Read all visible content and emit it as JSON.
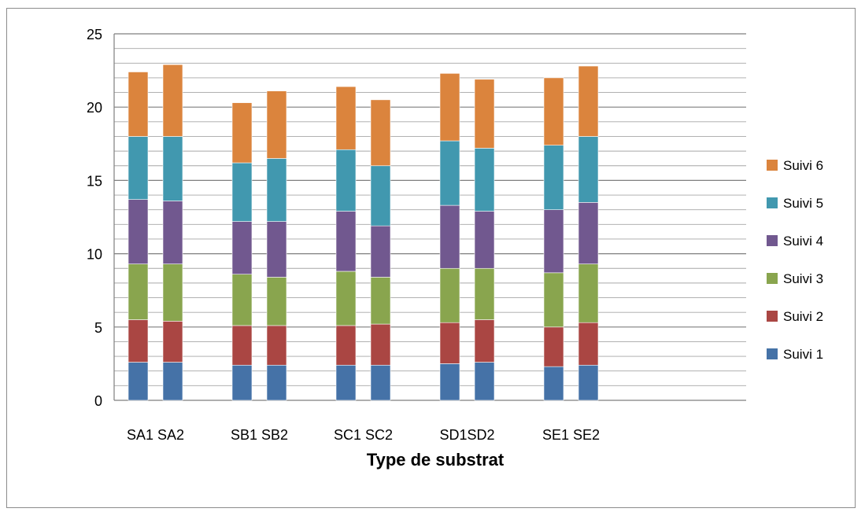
{
  "chart_data": {
    "type": "bar",
    "stacked": true,
    "title": "",
    "xlabel": "Type de substrat",
    "ylabel": "",
    "ylim": [
      0,
      25
    ],
    "y_ticks": [
      "0",
      "5",
      "10",
      "15",
      "20",
      "25"
    ],
    "grid": true,
    "legend_position": "right",
    "groups": [
      {
        "categories": [
          "SA1",
          "SA2"
        ]
      },
      {
        "categories": [
          "SB1",
          "SB2"
        ]
      },
      {
        "categories": [
          "SC1",
          "SC2"
        ]
      },
      {
        "categories": [
          "SD1",
          "SD2"
        ]
      },
      {
        "categories": [
          "SE1",
          "SE2"
        ]
      }
    ],
    "category_labels": [
      "SA1 SA2",
      "SB1 SB2",
      "SC1 SC2",
      "SD1SD2",
      "SE1 SE2"
    ],
    "categories": [
      "SA1",
      "SA2",
      "SB1",
      "SB2",
      "SC1",
      "SC2",
      "SD1",
      "SD2",
      "SE1",
      "SE2"
    ],
    "series": [
      {
        "name": "Suivi 1",
        "color": "#4572A7",
        "values": [
          2.6,
          2.6,
          2.4,
          2.4,
          2.4,
          2.4,
          2.5,
          2.6,
          2.3,
          2.4
        ]
      },
      {
        "name": "Suivi 2",
        "color": "#AA4643",
        "values": [
          2.9,
          2.8,
          2.7,
          2.7,
          2.7,
          2.8,
          2.8,
          2.9,
          2.7,
          2.9
        ]
      },
      {
        "name": "Suivi 3",
        "color": "#89A54E",
        "values": [
          3.8,
          3.9,
          3.5,
          3.3,
          3.7,
          3.2,
          3.7,
          3.5,
          3.7,
          4.0
        ]
      },
      {
        "name": "Suivi 4",
        "color": "#71588F",
        "values": [
          4.4,
          4.3,
          3.6,
          3.8,
          4.1,
          3.5,
          4.3,
          3.9,
          4.3,
          4.2
        ]
      },
      {
        "name": "Suivi 5",
        "color": "#4198AF",
        "values": [
          4.3,
          4.4,
          4.0,
          4.3,
          4.2,
          4.1,
          4.4,
          4.3,
          4.4,
          4.5
        ]
      },
      {
        "name": "Suivi 6",
        "color": "#DB843D",
        "values": [
          4.4,
          4.9,
          4.1,
          4.6,
          4.3,
          4.5,
          4.6,
          4.7,
          4.6,
          4.8
        ]
      }
    ]
  }
}
